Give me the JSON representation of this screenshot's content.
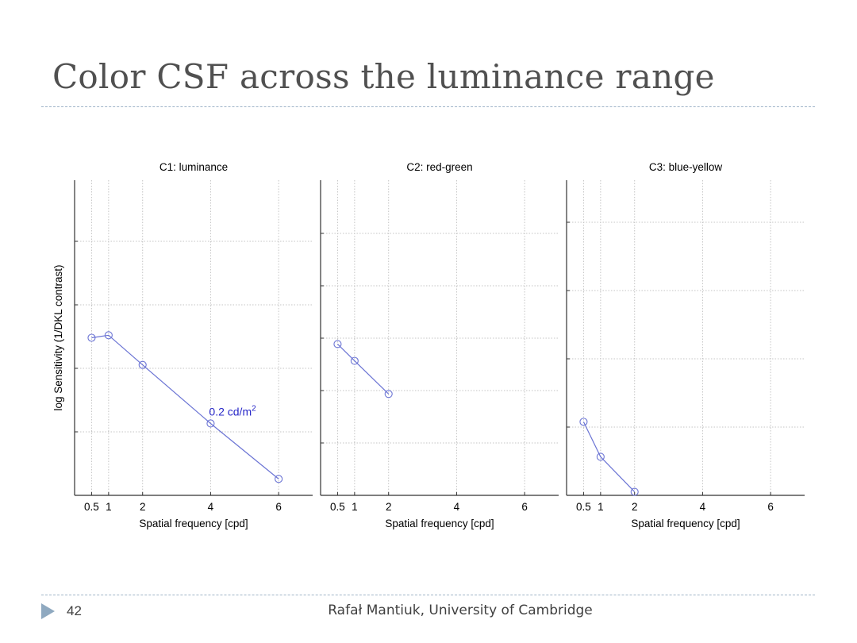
{
  "slide": {
    "title": "Color CSF across the luminance range",
    "page_number": "42",
    "footer": "Rafał Mantiuk, University of Cambridge"
  },
  "colors": {
    "rule": "#9fb4c8",
    "series": "#6b74d4",
    "annotation": "#2828c8",
    "grid": "#c4c4c4",
    "axis": "#000000"
  },
  "chart_data": [
    {
      "type": "line",
      "title": "C1: luminance",
      "xlabel": "Spatial frequency [cpd]",
      "ylabel": "log Sensitivity (1/DKL contrast)",
      "xticks": [
        0.5,
        1,
        2,
        4,
        6
      ],
      "xtick_labels": [
        "0.5",
        "1",
        "2",
        "4",
        "6"
      ],
      "xlim": [
        0,
        7
      ],
      "ylim": [
        0,
        5
      ],
      "grid": true,
      "series": [
        {
          "name": "0.2 cd/m2",
          "x": [
            0.5,
            1,
            2,
            4,
            6
          ],
          "y": [
            2.5,
            2.54,
            2.07,
            1.14,
            0.26
          ]
        }
      ],
      "annotation": {
        "text": "0.2 cd/m",
        "superscript": "2"
      }
    },
    {
      "type": "line",
      "title": "C2: red-green",
      "xlabel": "Spatial frequency [cpd]",
      "xticks": [
        0.5,
        1,
        2,
        4,
        6
      ],
      "xtick_labels": [
        "0.5",
        "1",
        "2",
        "4",
        "6"
      ],
      "xlim": [
        0,
        7
      ],
      "ylim": [
        0,
        6
      ],
      "grid": true,
      "series": [
        {
          "x": [
            0.5,
            1,
            2
          ],
          "y": [
            2.88,
            2.56,
            1.93
          ]
        }
      ]
    },
    {
      "type": "line",
      "title": "C3: blue-yellow",
      "xlabel": "Spatial frequency [cpd]",
      "xticks": [
        0.5,
        1,
        2,
        4,
        6
      ],
      "xtick_labels": [
        "0.5",
        "1",
        "2",
        "4",
        "6"
      ],
      "xlim": [
        0,
        7
      ],
      "ylim": [
        0,
        4.5
      ],
      "grid": true,
      "series": [
        {
          "x": [
            0.5,
            1,
            2
          ],
          "y": [
            1.05,
            0.55,
            0.05
          ]
        }
      ]
    }
  ]
}
